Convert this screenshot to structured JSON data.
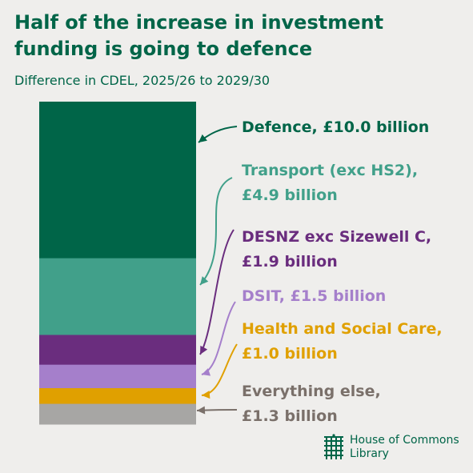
{
  "title": "Half of the increase in investment funding is going to defence",
  "subtitle": "Difference in CDEL, 2025/26 to 2029/30",
  "logo": {
    "line1": "House of Commons",
    "line2": "Library"
  },
  "chart_data": {
    "type": "bar",
    "orientation": "stacked-vertical",
    "unit": "£ billion",
    "segments": [
      {
        "name": "Defence",
        "value": 10.0,
        "label_lines": [
          "Defence, £10.0 billion"
        ],
        "color": "#006548",
        "label_color": "#006548"
      },
      {
        "name": "Transport (exc HS2)",
        "value": 4.9,
        "label_lines": [
          "Transport (exc HS2),",
          "£4.9 billion"
        ],
        "color": "#41a08a",
        "label_color": "#41a08a"
      },
      {
        "name": "DESNZ exc Sizewell C",
        "value": 1.9,
        "label_lines": [
          "DESNZ exc Sizewell C,",
          "£1.9 billion"
        ],
        "color": "#6a2d7e",
        "label_color": "#6a2d7e"
      },
      {
        "name": "DSIT",
        "value": 1.5,
        "label_lines": [
          "DSIT, £1.5 billion"
        ],
        "color": "#a57fcb",
        "label_color": "#a57fcb"
      },
      {
        "name": "Health and Social Care",
        "value": 1.0,
        "label_lines": [
          "Health and Social Care,",
          "£1.0 billion"
        ],
        "color": "#e0a000",
        "label_color": "#e0a000"
      },
      {
        "name": "Everything else",
        "value": 1.3,
        "label_lines": [
          "Everything else,",
          "£1.3 billion"
        ],
        "color": "#a7a6a4",
        "label_color": "#7a706a"
      }
    ]
  }
}
